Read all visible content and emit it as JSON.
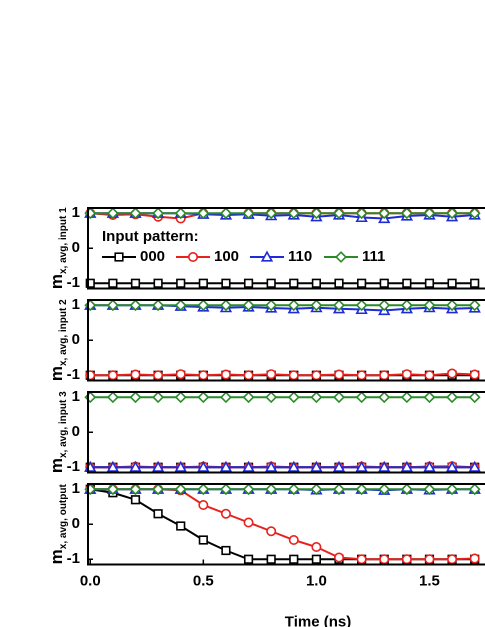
{
  "chart_data": [
    {
      "type": "line",
      "ylabel": "m",
      "ylabel_sub": "x, avg, input 1",
      "legend_title": "Input pattern:",
      "legend": "left",
      "x": [
        0,
        0.1,
        0.2,
        0.3,
        0.4,
        0.5,
        0.6,
        0.7,
        0.8,
        0.9,
        1.0,
        1.1,
        1.2,
        1.3,
        1.4,
        1.5,
        1.6,
        1.7
      ],
      "xlim": [
        -0.01,
        1.75
      ],
      "ylim": [
        -1.15,
        1.15
      ],
      "yticks": [
        -1,
        0,
        1
      ],
      "series": [
        {
          "name": "000",
          "color": "#000000",
          "marker": "square",
          "values": [
            -1,
            -1,
            -1,
            -1,
            -1,
            -1,
            -1,
            -1,
            -1,
            -1,
            -1,
            -1,
            -1,
            -1,
            -1,
            -1,
            -1,
            -1
          ]
        },
        {
          "name": "100",
          "color": "#e8211d",
          "marker": "circle",
          "values": [
            1,
            0.95,
            0.97,
            0.9,
            0.85,
            1,
            0.97,
            1,
            1,
            1,
            1,
            1,
            1,
            1,
            1,
            1,
            1,
            1
          ]
        },
        {
          "name": "110",
          "color": "#1f2bd6",
          "marker": "triangle",
          "values": [
            1,
            1,
            1,
            1,
            1,
            0.97,
            0.95,
            0.97,
            0.93,
            0.95,
            0.9,
            0.95,
            0.88,
            0.85,
            0.92,
            0.95,
            0.9,
            0.95
          ]
        },
        {
          "name": "111",
          "color": "#2a8a2a",
          "marker": "diamond",
          "values": [
            1,
            1,
            1,
            1,
            1,
            1,
            1,
            1,
            1,
            1,
            1,
            1,
            1,
            1,
            1,
            1,
            1,
            1
          ]
        }
      ]
    },
    {
      "type": "line",
      "ylabel": "m",
      "ylabel_sub": "x, avg, input 2",
      "x": [
        0,
        0.1,
        0.2,
        0.3,
        0.4,
        0.5,
        0.6,
        0.7,
        0.8,
        0.9,
        1.0,
        1.1,
        1.2,
        1.3,
        1.4,
        1.5,
        1.6,
        1.7
      ],
      "xlim": [
        -0.01,
        1.75
      ],
      "ylim": [
        -1.15,
        1.15
      ],
      "yticks": [
        -1,
        0,
        1
      ],
      "series": [
        {
          "color": "#000000",
          "marker": "square",
          "values": [
            -1,
            -1,
            -1,
            -1,
            -1,
            -1,
            -1,
            -1,
            -1,
            -1,
            -1,
            -1,
            -1,
            -1,
            -1,
            -1,
            -1,
            -1
          ]
        },
        {
          "color": "#e8211d",
          "marker": "circle",
          "values": [
            -1,
            -1,
            -0.98,
            -1,
            -0.97,
            -1,
            -0.98,
            -1,
            -0.97,
            -1,
            -1,
            -0.98,
            -1,
            -1,
            -0.97,
            -1,
            -0.95,
            -0.98
          ]
        },
        {
          "color": "#1f2bd6",
          "marker": "triangle",
          "values": [
            1,
            1,
            1,
            1,
            0.97,
            0.95,
            0.93,
            0.95,
            0.92,
            0.9,
            0.93,
            0.9,
            0.88,
            0.85,
            0.9,
            0.93,
            0.9,
            0.92
          ]
        },
        {
          "color": "#2a8a2a",
          "marker": "diamond",
          "values": [
            1,
            1,
            1,
            1,
            1,
            1,
            1,
            1,
            1,
            1,
            1,
            1,
            1,
            1,
            1,
            1,
            1,
            1
          ]
        }
      ]
    },
    {
      "type": "line",
      "ylabel": "m",
      "ylabel_sub": "x, avg, input 3",
      "x": [
        0,
        0.1,
        0.2,
        0.3,
        0.4,
        0.5,
        0.6,
        0.7,
        0.8,
        0.9,
        1.0,
        1.1,
        1.2,
        1.3,
        1.4,
        1.5,
        1.6,
        1.7
      ],
      "xlim": [
        -0.01,
        1.75
      ],
      "ylim": [
        -1.15,
        1.15
      ],
      "yticks": [
        -1,
        0,
        1
      ],
      "series": [
        {
          "color": "#000000",
          "marker": "square",
          "values": [
            -1,
            -1,
            -1,
            -1,
            -1,
            -1,
            -1,
            -1,
            -1,
            -1,
            -1,
            -1,
            -1,
            -1,
            -1,
            -1,
            -1,
            -1
          ]
        },
        {
          "color": "#e8211d",
          "marker": "circle",
          "values": [
            -1,
            -1,
            -0.98,
            -1,
            -1,
            -0.98,
            -1,
            -1,
            -0.98,
            -1,
            -1,
            -1,
            -0.98,
            -1,
            -1,
            -0.98,
            -0.97,
            -1
          ]
        },
        {
          "color": "#1f2bd6",
          "marker": "triangle",
          "values": [
            -1,
            -1,
            -1,
            -1,
            -1,
            -1,
            -1,
            -1,
            -1,
            -1,
            -1,
            -1,
            -1,
            -1,
            -1,
            -1,
            -1,
            -1
          ]
        },
        {
          "color": "#2a8a2a",
          "marker": "diamond",
          "values": [
            1,
            1,
            1,
            1,
            1,
            1,
            1,
            1,
            1,
            1,
            1,
            1,
            1,
            1,
            1,
            1,
            1,
            1
          ]
        }
      ]
    },
    {
      "type": "line",
      "ylabel": "m",
      "ylabel_sub": "x, avg, output",
      "xlabel": "Time (ns)",
      "x": [
        0,
        0.1,
        0.2,
        0.3,
        0.4,
        0.5,
        0.6,
        0.7,
        0.8,
        0.9,
        1.0,
        1.1,
        1.2,
        1.3,
        1.4,
        1.5,
        1.6,
        1.7
      ],
      "xlim": [
        -0.01,
        1.75
      ],
      "ylim": [
        -1.15,
        1.15
      ],
      "yticks": [
        -1,
        0,
        1
      ],
      "xticks": [
        {
          "value": 0,
          "label": "0.0"
        },
        0.5,
        {
          "value": 1,
          "label": "1.0"
        },
        1.5
      ],
      "series": [
        {
          "color": "#000000",
          "marker": "square",
          "values": [
            1,
            0.9,
            0.7,
            0.3,
            -0.05,
            -0.45,
            -0.75,
            -1,
            -1,
            -1,
            -1,
            -1,
            -1,
            -1,
            -1,
            -1,
            -1,
            -1
          ]
        },
        {
          "color": "#e8211d",
          "marker": "circle",
          "values": [
            1,
            1,
            1,
            1,
            0.97,
            0.55,
            0.3,
            0.05,
            -0.2,
            -0.45,
            -0.65,
            -0.95,
            -1,
            -1,
            -1,
            -1,
            -1,
            -0.98
          ]
        },
        {
          "color": "#1f2bd6",
          "marker": "triangle",
          "values": [
            1,
            1,
            1,
            1,
            1,
            1,
            1,
            1,
            1,
            1,
            0.98,
            1,
            1,
            0.97,
            1,
            0.98,
            1,
            1
          ]
        },
        {
          "color": "#2a8a2a",
          "marker": "diamond",
          "values": [
            1,
            1,
            1,
            1,
            1,
            1,
            1,
            1,
            1,
            1,
            1,
            1,
            1,
            1,
            1,
            1,
            1,
            1
          ]
        }
      ]
    }
  ]
}
